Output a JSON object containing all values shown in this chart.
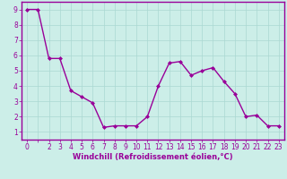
{
  "x": [
    0,
    1,
    2,
    3,
    4,
    5,
    6,
    7,
    8,
    9,
    10,
    11,
    12,
    13,
    14,
    15,
    16,
    17,
    18,
    19,
    20,
    21,
    22,
    23
  ],
  "y": [
    9.0,
    9.0,
    5.8,
    5.8,
    3.7,
    3.3,
    2.9,
    1.3,
    1.4,
    1.4,
    1.4,
    2.0,
    4.0,
    5.5,
    5.6,
    4.7,
    5.0,
    5.2,
    4.3,
    3.5,
    2.0,
    2.1,
    1.4,
    1.4
  ],
  "line_color": "#990099",
  "marker": "D",
  "markersize": 2.0,
  "linewidth": 1.0,
  "xlabel": "Windchill (Refroidissement éolien,°C)",
  "xlabel_color": "#990099",
  "xlabel_fontsize": 6.0,
  "ylim": [
    0.7,
    9.5
  ],
  "xlim": [
    -0.5,
    23.5
  ],
  "bg_color": "#cceee8",
  "grid_color": "#aad8d2",
  "tick_color": "#990099",
  "tick_fontsize": 5.5,
  "spine_color": "#990099",
  "spine_linewidth": 1.0
}
